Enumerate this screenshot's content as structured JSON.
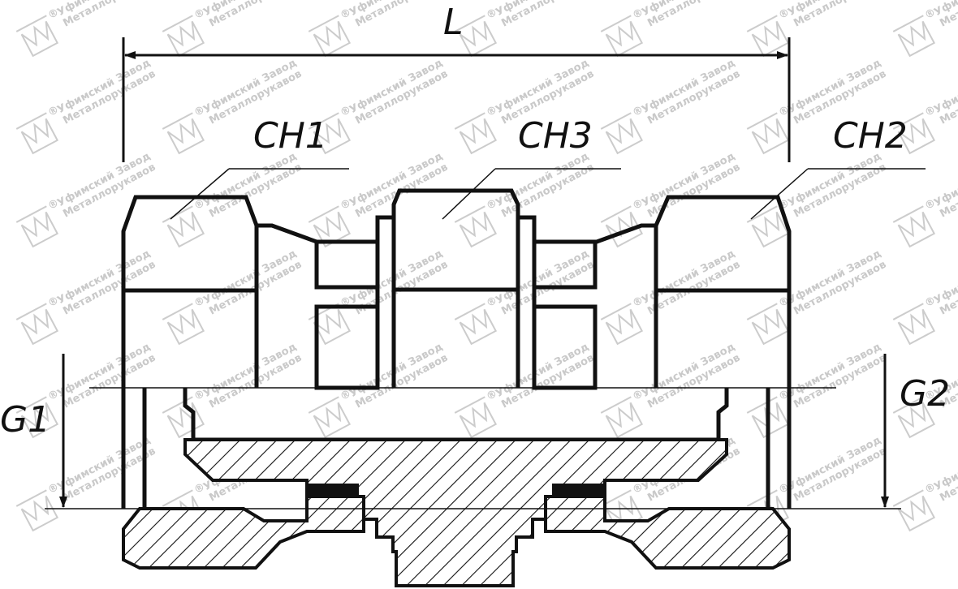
{
  "labels": {
    "length": "L",
    "hex1": "CH1",
    "hex2": "CH2",
    "hex3": "CH3",
    "thread1": "G1",
    "thread2": "G2"
  },
  "watermark": {
    "line1": "Уфимский Завод",
    "line2": "Металлорукавов",
    "mark": "®",
    "icon": "company-logo-icon"
  },
  "colors": {
    "line": "#111111",
    "watermark": "#c9c9c9",
    "background": "#ffffff"
  }
}
